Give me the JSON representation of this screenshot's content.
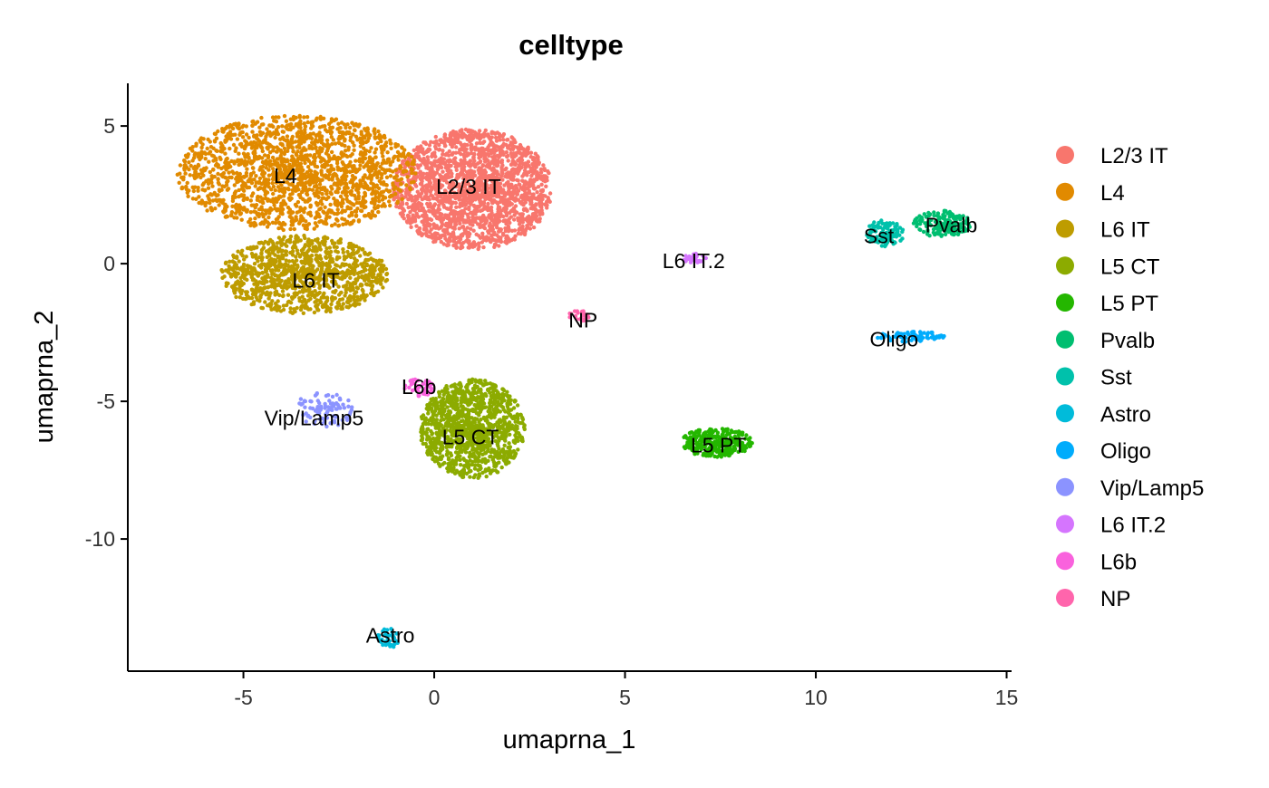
{
  "chart_data": {
    "type": "scatter",
    "title": "celltype",
    "xlabel": "umaprna_1",
    "ylabel": "umaprna_2",
    "xlim": [
      -8.03,
      15.13
    ],
    "ylim": [
      -14.8,
      6.55
    ],
    "xticks": [
      -5,
      0,
      5,
      10,
      15
    ],
    "yticks": [
      5,
      0,
      -5,
      -10
    ],
    "grid": false,
    "legend_position": "right",
    "clusters": [
      {
        "name": "L2/3 IT",
        "color": "#F8766D",
        "center": [
          1.0,
          2.7
        ],
        "spread": [
          2.2,
          2.3
        ],
        "n": 2000,
        "label_at": [
          0.9,
          2.8
        ]
      },
      {
        "name": "L4",
        "color": "#E18A00",
        "center": [
          -3.6,
          3.3
        ],
        "spread": [
          3.3,
          2.2
        ],
        "n": 1800,
        "label_at": [
          -3.9,
          3.2
        ]
      },
      {
        "name": "L6 IT",
        "color": "#BE9C00",
        "center": [
          -3.4,
          -0.4
        ],
        "spread": [
          2.3,
          1.5
        ],
        "n": 1100,
        "label_at": [
          -3.1,
          -0.6
        ]
      },
      {
        "name": "L5 CT",
        "color": "#8CAB00",
        "center": [
          1.0,
          -6.0
        ],
        "spread": [
          1.45,
          1.9
        ],
        "n": 1200,
        "label_at": [
          0.95,
          -6.3
        ]
      },
      {
        "name": "L5 PT",
        "color": "#24B700",
        "center": [
          7.4,
          -6.5
        ],
        "spread": [
          1.0,
          0.55
        ],
        "n": 300,
        "label_at": [
          7.45,
          -6.6
        ]
      },
      {
        "name": "Pvalb",
        "color": "#00BE70",
        "center": [
          13.3,
          1.45
        ],
        "spread": [
          0.8,
          0.5
        ],
        "n": 180,
        "label_at": [
          13.55,
          1.4
        ]
      },
      {
        "name": "Sst",
        "color": "#00C1AB",
        "center": [
          11.8,
          1.1
        ],
        "spread": [
          0.55,
          0.5
        ],
        "n": 120,
        "label_at": [
          11.65,
          1.0
        ]
      },
      {
        "name": "Astro",
        "color": "#00BBDA",
        "center": [
          -1.2,
          -13.6
        ],
        "spread": [
          0.3,
          0.4
        ],
        "n": 40,
        "label_at": [
          -1.15,
          -13.5
        ]
      },
      {
        "name": "Oligo",
        "color": "#00ACFC",
        "center": [
          12.5,
          -2.65
        ],
        "spread": [
          0.95,
          0.2
        ],
        "n": 80,
        "label_at": [
          12.05,
          -2.75
        ]
      },
      {
        "name": "Vip/Lamp5",
        "color": "#8B93FF",
        "center": [
          -2.9,
          -5.3
        ],
        "spread": [
          0.8,
          0.7
        ],
        "n": 90,
        "label_at": [
          -3.15,
          -5.6
        ]
      },
      {
        "name": "L6 IT.2",
        "color": "#D575FE",
        "center": [
          6.8,
          0.2
        ],
        "spread": [
          0.35,
          0.18
        ],
        "n": 30,
        "label_at": [
          6.8,
          0.1
        ]
      },
      {
        "name": "L6b",
        "color": "#F962DD",
        "center": [
          -0.4,
          -4.5
        ],
        "spread": [
          0.4,
          0.35
        ],
        "n": 50,
        "label_at": [
          -0.4,
          -4.47
        ]
      },
      {
        "name": "NP",
        "color": "#FF65AC",
        "center": [
          3.8,
          -1.9
        ],
        "spread": [
          0.3,
          0.2
        ],
        "n": 25,
        "label_at": [
          3.9,
          -2.05
        ]
      }
    ]
  }
}
